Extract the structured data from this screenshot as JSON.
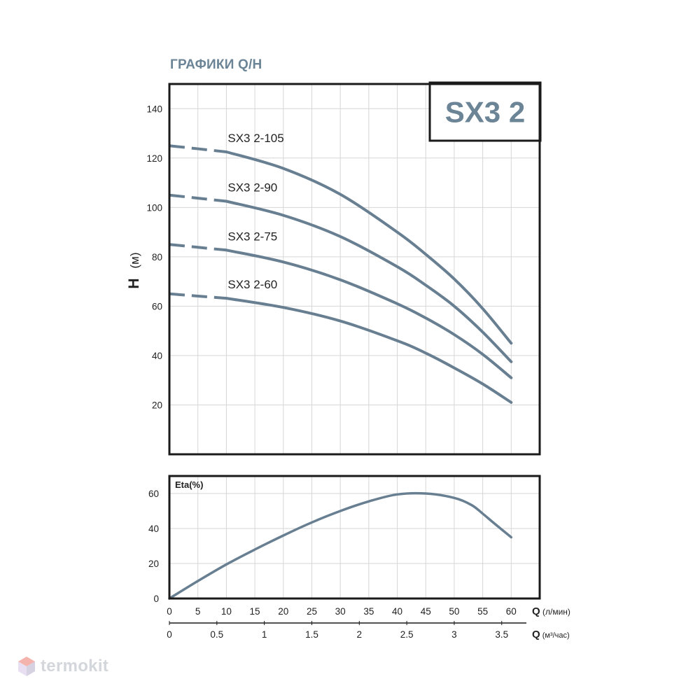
{
  "page_title": "ГРАФИКИ Q/H",
  "model_badge": "SX3 2",
  "watermark": "termokit",
  "colors": {
    "curve": "#687f92",
    "frame": "#1a1a1a",
    "grid": "#d6d6d6",
    "title": "#6b8496",
    "watermark": "#d3d6da"
  },
  "chart_data": [
    {
      "type": "line",
      "title": "",
      "ylabel": "H (м)",
      "xlabel": "Q (л/мин)",
      "xlim": [
        0,
        65
      ],
      "ylim": [
        0,
        150
      ],
      "y_ticks": [
        20,
        40,
        60,
        80,
        100,
        120,
        140
      ],
      "grid": true,
      "x_extrapolated_below": 10,
      "series": [
        {
          "name": "SX3 2-105",
          "x": [
            0,
            10,
            20,
            30,
            40,
            45,
            50,
            55,
            60
          ],
          "y": [
            125,
            122.5,
            115.8,
            105.3,
            90,
            81,
            71,
            59,
            45
          ]
        },
        {
          "name": "SX3 2-90",
          "x": [
            0,
            10,
            20,
            30,
            40,
            45,
            50,
            55,
            60
          ],
          "y": [
            105,
            102.5,
            96.8,
            88.2,
            76,
            68.5,
            60,
            49.5,
            37.5
          ]
        },
        {
          "name": "SX3 2-75",
          "x": [
            0,
            10,
            20,
            30,
            40,
            45,
            50,
            55,
            60
          ],
          "y": [
            85,
            82.7,
            77.9,
            70.7,
            61,
            55.2,
            48.5,
            40.5,
            31
          ]
        },
        {
          "name": "SX3 2-60",
          "x": [
            0,
            10,
            20,
            30,
            40,
            45,
            50,
            55,
            60
          ],
          "y": [
            65,
            63.2,
            59.5,
            54,
            46,
            41,
            35,
            28.5,
            21
          ]
        }
      ]
    },
    {
      "type": "line",
      "title": "",
      "ylabel": "Eta(%)",
      "xlabel": "Q (л/мин)",
      "xlim": [
        0,
        65
      ],
      "ylim": [
        0,
        70
      ],
      "y_ticks": [
        0,
        20,
        40,
        60
      ],
      "x_ticks": [
        0,
        5,
        10,
        15,
        20,
        25,
        30,
        35,
        40,
        45,
        50,
        55,
        60
      ],
      "x2_label": "Q (м³/час)",
      "x2_ticks": [
        "0",
        "0.5",
        "1",
        "1.5",
        "2",
        "2.5",
        "3",
        "3.5"
      ],
      "x2_tick_values": [
        0,
        0.5,
        1,
        1.5,
        2,
        2.5,
        3,
        3.5
      ],
      "grid": true,
      "series": [
        {
          "name": "",
          "x": [
            0,
            5,
            10,
            15,
            20,
            25,
            30,
            35,
            40,
            45,
            50,
            53,
            55,
            57,
            60
          ],
          "y": [
            0,
            10,
            19.5,
            28,
            36,
            43.5,
            50,
            55.5,
            59.5,
            60,
            57.5,
            53.5,
            48.5,
            43,
            35
          ]
        }
      ]
    }
  ]
}
